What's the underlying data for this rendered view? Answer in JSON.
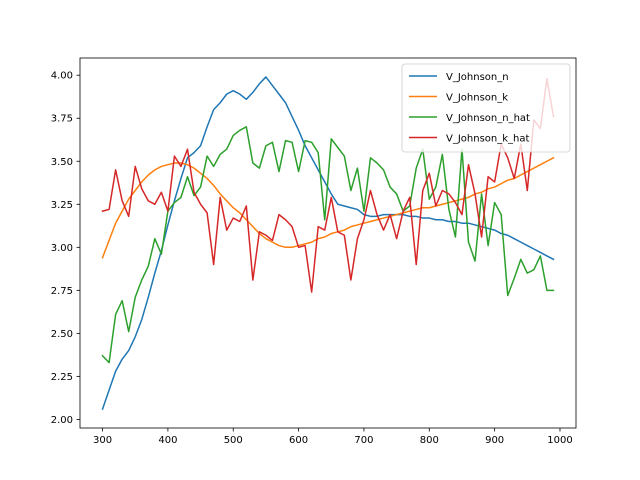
{
  "chart_data": {
    "type": "line",
    "title": "",
    "xlabel": "",
    "ylabel": "",
    "xlim": [
      265.5,
      1024.5
    ],
    "ylim": [
      1.95,
      4.1
    ],
    "x_ticks": [
      300,
      400,
      500,
      600,
      700,
      800,
      900,
      1000
    ],
    "y_ticks": [
      2.0,
      2.25,
      2.5,
      2.75,
      3.0,
      3.25,
      3.5,
      3.75,
      4.0
    ],
    "x_tick_labels": [
      "300",
      "400",
      "500",
      "600",
      "700",
      "800",
      "900",
      "1000"
    ],
    "y_tick_labels": [
      "2.00",
      "2.25",
      "2.50",
      "2.75",
      "3.00",
      "3.25",
      "3.50",
      "3.75",
      "4.00"
    ],
    "grid": false,
    "legend_position": "upper-right",
    "x": [
      300,
      310,
      320,
      330,
      340,
      350,
      360,
      370,
      380,
      390,
      400,
      410,
      420,
      430,
      440,
      450,
      460,
      470,
      480,
      490,
      500,
      510,
      520,
      530,
      540,
      550,
      560,
      570,
      580,
      590,
      600,
      610,
      620,
      630,
      640,
      650,
      660,
      670,
      680,
      690,
      700,
      710,
      720,
      730,
      740,
      750,
      760,
      770,
      780,
      790,
      800,
      810,
      820,
      830,
      840,
      850,
      860,
      870,
      880,
      890,
      900,
      910,
      920,
      930,
      940,
      950,
      960,
      970,
      980,
      990
    ],
    "series": [
      {
        "name": "V_Johnson_n",
        "color": "#1f77b4",
        "values": [
          2.06,
          2.17,
          2.28,
          2.35,
          2.4,
          2.48,
          2.58,
          2.71,
          2.85,
          2.98,
          3.13,
          3.27,
          3.4,
          3.52,
          3.55,
          3.59,
          3.7,
          3.8,
          3.84,
          3.89,
          3.91,
          3.89,
          3.86,
          3.9,
          3.95,
          3.99,
          3.94,
          3.89,
          3.84,
          3.76,
          3.68,
          3.59,
          3.52,
          3.45,
          3.38,
          3.31,
          3.25,
          3.24,
          3.23,
          3.22,
          3.19,
          3.18,
          3.18,
          3.19,
          3.19,
          3.19,
          3.19,
          3.18,
          3.18,
          3.17,
          3.17,
          3.16,
          3.16,
          3.15,
          3.15,
          3.14,
          3.14,
          3.13,
          3.12,
          3.11,
          3.1,
          3.08,
          3.07,
          3.05,
          3.03,
          3.01,
          2.99,
          2.97,
          2.95,
          2.93
        ]
      },
      {
        "name": "V_Johnson_k",
        "color": "#ff7f0e",
        "values": [
          2.94,
          3.04,
          3.14,
          3.21,
          3.28,
          3.33,
          3.38,
          3.42,
          3.45,
          3.47,
          3.48,
          3.49,
          3.49,
          3.48,
          3.46,
          3.43,
          3.4,
          3.36,
          3.31,
          3.27,
          3.23,
          3.2,
          3.16,
          3.12,
          3.08,
          3.05,
          3.03,
          3.01,
          3.0,
          3.0,
          3.01,
          3.02,
          3.03,
          3.05,
          3.06,
          3.08,
          3.09,
          3.1,
          3.12,
          3.13,
          3.14,
          3.15,
          3.16,
          3.17,
          3.18,
          3.19,
          3.2,
          3.21,
          3.22,
          3.23,
          3.23,
          3.24,
          3.25,
          3.26,
          3.27,
          3.28,
          3.29,
          3.31,
          3.32,
          3.34,
          3.35,
          3.37,
          3.39,
          3.4,
          3.42,
          3.44,
          3.46,
          3.48,
          3.5,
          3.52
        ]
      },
      {
        "name": "V_Johnson_n_hat",
        "color": "#2ca02c",
        "values": [
          2.37,
          2.33,
          2.61,
          2.69,
          2.51,
          2.71,
          2.81,
          2.89,
          3.05,
          2.96,
          3.21,
          3.26,
          3.29,
          3.41,
          3.3,
          3.35,
          3.53,
          3.47,
          3.54,
          3.57,
          3.65,
          3.68,
          3.7,
          3.49,
          3.46,
          3.59,
          3.61,
          3.44,
          3.62,
          3.61,
          3.44,
          3.62,
          3.61,
          3.55,
          3.16,
          3.63,
          3.58,
          3.53,
          3.33,
          3.46,
          3.21,
          3.52,
          3.49,
          3.45,
          3.35,
          3.31,
          3.21,
          3.24,
          3.46,
          3.57,
          3.28,
          3.35,
          3.54,
          3.22,
          3.06,
          3.57,
          3.03,
          2.92,
          3.31,
          3.01,
          3.26,
          3.19,
          2.72,
          2.82,
          2.93,
          2.85,
          2.87,
          2.95,
          2.75,
          2.75
        ]
      },
      {
        "name": "V_Johnson_k_hat",
        "color": "#d62728",
        "values": [
          3.21,
          3.22,
          3.45,
          3.27,
          3.18,
          3.47,
          3.34,
          3.27,
          3.25,
          3.32,
          3.21,
          3.53,
          3.47,
          3.57,
          3.32,
          3.25,
          3.2,
          2.9,
          3.29,
          3.1,
          3.17,
          3.15,
          3.24,
          2.81,
          3.09,
          3.07,
          3.04,
          3.19,
          3.16,
          3.12,
          3.0,
          3.01,
          2.74,
          3.12,
          3.1,
          3.29,
          3.09,
          3.07,
          2.81,
          3.05,
          3.16,
          3.33,
          3.19,
          3.1,
          3.19,
          3.05,
          3.21,
          3.29,
          2.9,
          3.33,
          3.43,
          3.24,
          3.33,
          3.31,
          3.26,
          3.19,
          3.48,
          3.31,
          3.06,
          3.41,
          3.38,
          3.6,
          3.52,
          3.4,
          3.6,
          3.33,
          3.74,
          3.69,
          3.98,
          3.76
        ]
      }
    ]
  }
}
